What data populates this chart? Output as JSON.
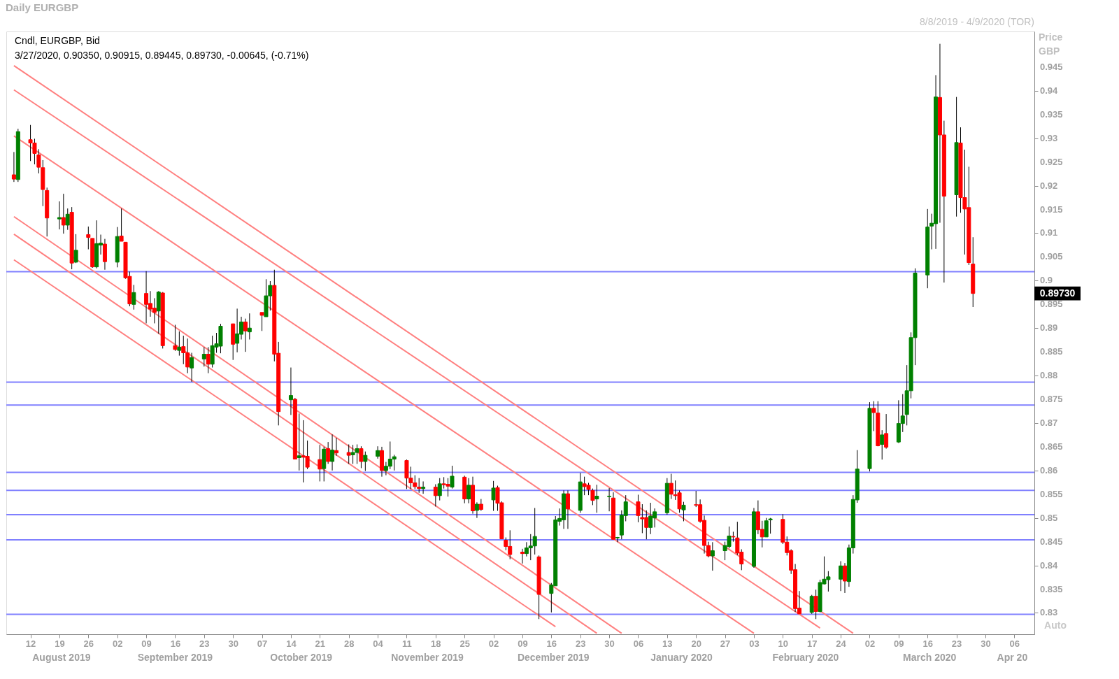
{
  "chart_data": {
    "type": "candlestick",
    "title": "Daily EURGBP",
    "subtitle": "8/8/2019 - 4/9/2020 (TOR)",
    "ylabel": "Price GBP",
    "x": [
      "2019-08-08",
      "2019-08-09",
      "2019-08-12",
      "2019-08-13",
      "2019-08-14",
      "2019-08-15",
      "2019-08-16",
      "2019-08-19",
      "2019-08-20",
      "2019-08-21",
      "2019-08-22",
      "2019-08-23",
      "2019-08-26",
      "2019-08-27",
      "2019-08-28",
      "2019-08-29",
      "2019-08-30",
      "2019-09-02",
      "2019-09-03",
      "2019-09-04",
      "2019-09-05",
      "2019-09-06",
      "2019-09-09",
      "2019-09-10",
      "2019-09-11",
      "2019-09-12",
      "2019-09-13",
      "2019-09-16",
      "2019-09-17",
      "2019-09-18",
      "2019-09-19",
      "2019-09-20",
      "2019-09-23",
      "2019-09-24",
      "2019-09-25",
      "2019-09-26",
      "2019-09-27",
      "2019-09-30",
      "2019-10-01",
      "2019-10-02",
      "2019-10-03",
      "2019-10-04",
      "2019-10-07",
      "2019-10-08",
      "2019-10-09",
      "2019-10-10",
      "2019-10-11",
      "2019-10-14",
      "2019-10-15",
      "2019-10-16",
      "2019-10-17",
      "2019-10-18",
      "2019-10-21",
      "2019-10-22",
      "2019-10-23",
      "2019-10-24",
      "2019-10-25",
      "2019-10-28",
      "2019-10-29",
      "2019-10-30",
      "2019-10-31",
      "2019-11-01",
      "2019-11-04",
      "2019-11-05",
      "2019-11-06",
      "2019-11-07",
      "2019-11-08",
      "2019-11-11",
      "2019-11-12",
      "2019-11-13",
      "2019-11-14",
      "2019-11-15",
      "2019-11-18",
      "2019-11-19",
      "2019-11-20",
      "2019-11-21",
      "2019-11-22",
      "2019-11-25",
      "2019-11-26",
      "2019-11-27",
      "2019-11-28",
      "2019-11-29",
      "2019-12-02",
      "2019-12-03",
      "2019-12-04",
      "2019-12-05",
      "2019-12-06",
      "2019-12-09",
      "2019-12-10",
      "2019-12-11",
      "2019-12-12",
      "2019-12-13",
      "2019-12-16",
      "2019-12-17",
      "2019-12-18",
      "2019-12-19",
      "2019-12-20",
      "2019-12-23",
      "2019-12-24",
      "2019-12-25",
      "2019-12-26",
      "2019-12-27",
      "2019-12-30",
      "2019-12-31",
      "2020-01-01",
      "2020-01-02",
      "2020-01-03",
      "2020-01-06",
      "2020-01-07",
      "2020-01-08",
      "2020-01-09",
      "2020-01-10",
      "2020-01-13",
      "2020-01-14",
      "2020-01-15",
      "2020-01-16",
      "2020-01-17",
      "2020-01-20",
      "2020-01-21",
      "2020-01-22",
      "2020-01-23",
      "2020-01-24",
      "2020-01-27",
      "2020-01-28",
      "2020-01-29",
      "2020-01-30",
      "2020-01-31",
      "2020-02-03",
      "2020-02-04",
      "2020-02-05",
      "2020-02-06",
      "2020-02-07",
      "2020-02-10",
      "2020-02-11",
      "2020-02-12",
      "2020-02-13",
      "2020-02-14",
      "2020-02-17",
      "2020-02-18",
      "2020-02-19",
      "2020-02-20",
      "2020-02-21",
      "2020-02-24",
      "2020-02-25",
      "2020-02-26",
      "2020-02-27",
      "2020-02-28",
      "2020-03-02",
      "2020-03-03",
      "2020-03-04",
      "2020-03-05",
      "2020-03-06",
      "2020-03-09",
      "2020-03-10",
      "2020-03-11",
      "2020-03-12",
      "2020-03-13",
      "2020-03-16",
      "2020-03-17",
      "2020-03-18",
      "2020-03-19",
      "2020-03-20",
      "2020-03-23",
      "2020-03-24",
      "2020-03-25",
      "2020-03-26",
      "2020-03-27"
    ],
    "ohlc": [
      [
        0.9223,
        0.9271,
        0.9208,
        0.9214
      ],
      [
        0.9213,
        0.932,
        0.9208,
        0.9314
      ],
      [
        0.9297,
        0.9328,
        0.9252,
        0.929
      ],
      [
        0.929,
        0.9299,
        0.9245,
        0.9268
      ],
      [
        0.9265,
        0.9277,
        0.9226,
        0.9239
      ],
      [
        0.9238,
        0.9254,
        0.9157,
        0.9192
      ],
      [
        0.919,
        0.9196,
        0.9093,
        0.9132
      ],
      [
        0.913,
        0.9167,
        0.9108,
        0.9133
      ],
      [
        0.9133,
        0.9183,
        0.9099,
        0.9117
      ],
      [
        0.9117,
        0.9152,
        0.9107,
        0.914
      ],
      [
        0.9144,
        0.9155,
        0.9024,
        0.9037
      ],
      [
        0.9039,
        0.9098,
        0.9037,
        0.9064
      ],
      [
        0.9097,
        0.9114,
        0.9066,
        0.9091
      ],
      [
        0.9089,
        0.9089,
        0.9027,
        0.9029
      ],
      [
        0.9029,
        0.9127,
        0.9026,
        0.9078
      ],
      [
        0.9075,
        0.9097,
        0.9055,
        0.9079
      ],
      [
        0.9077,
        0.9088,
        0.9023,
        0.904
      ],
      [
        0.9039,
        0.9113,
        0.9028,
        0.9093
      ],
      [
        0.9094,
        0.9152,
        0.9083,
        0.9083
      ],
      [
        0.9081,
        0.9081,
        0.9004,
        0.9006
      ],
      [
        0.9009,
        0.9019,
        0.8946,
        0.8951
      ],
      [
        0.895,
        0.8991,
        0.8939,
        0.8975
      ],
      [
        0.8973,
        0.902,
        0.891,
        0.895
      ],
      [
        0.8952,
        0.8978,
        0.8924,
        0.894
      ],
      [
        0.8942,
        0.8963,
        0.891,
        0.8933
      ],
      [
        0.8936,
        0.8978,
        0.8888,
        0.8976
      ],
      [
        0.8974,
        0.8976,
        0.8857,
        0.8863
      ],
      [
        0.8863,
        0.8907,
        0.8852,
        0.8855
      ],
      [
        0.8853,
        0.8893,
        0.8842,
        0.886
      ],
      [
        0.8861,
        0.8884,
        0.8824,
        0.8848
      ],
      [
        0.8848,
        0.8878,
        0.8805,
        0.8818
      ],
      [
        0.8816,
        0.8848,
        0.8787,
        0.8838
      ],
      [
        0.8835,
        0.886,
        0.8819,
        0.8845
      ],
      [
        0.8845,
        0.886,
        0.8805,
        0.8824
      ],
      [
        0.8824,
        0.8884,
        0.8817,
        0.8863
      ],
      [
        0.886,
        0.889,
        0.8848,
        0.8867
      ],
      [
        0.8862,
        0.8909,
        0.8847,
        0.8904
      ],
      [
        0.8909,
        0.8909,
        0.8833,
        0.8866
      ],
      [
        0.8868,
        0.8941,
        0.8849,
        0.8888
      ],
      [
        0.8887,
        0.8924,
        0.8876,
        0.8913
      ],
      [
        0.8913,
        0.892,
        0.885,
        0.8894
      ],
      [
        0.8892,
        0.8931,
        0.8876,
        0.89
      ],
      [
        0.8933,
        0.8933,
        0.8894,
        0.8927
      ],
      [
        0.8924,
        0.9003,
        0.8924,
        0.8968
      ],
      [
        0.8968,
        0.8999,
        0.8937,
        0.899
      ],
      [
        0.899,
        0.9023,
        0.883,
        0.8845
      ],
      [
        0.8847,
        0.8871,
        0.8695,
        0.8724
      ],
      [
        0.8749,
        0.8817,
        0.8717,
        0.8758
      ],
      [
        0.875,
        0.8753,
        0.8624,
        0.8624
      ],
      [
        0.8627,
        0.872,
        0.86,
        0.8631
      ],
      [
        0.8631,
        0.8706,
        0.8575,
        0.8628
      ],
      [
        0.863,
        0.8663,
        0.8603,
        0.8607
      ],
      [
        0.8623,
        0.8654,
        0.8577,
        0.8603
      ],
      [
        0.8604,
        0.865,
        0.8577,
        0.8645
      ],
      [
        0.8646,
        0.866,
        0.8614,
        0.8619
      ],
      [
        0.8619,
        0.8676,
        0.86,
        0.8643
      ],
      [
        0.8642,
        0.8669,
        0.8631,
        0.8637
      ],
      [
        0.8638,
        0.8655,
        0.8614,
        0.8632
      ],
      [
        0.8633,
        0.8654,
        0.8614,
        0.8638
      ],
      [
        0.8638,
        0.8655,
        0.8614,
        0.8646
      ],
      [
        0.8646,
        0.8651,
        0.8605,
        0.8619
      ],
      [
        0.8619,
        0.864,
        0.8599,
        0.8632
      ],
      [
        0.863,
        0.8651,
        0.8625,
        0.8642
      ],
      [
        0.8642,
        0.865,
        0.8587,
        0.86
      ],
      [
        0.86,
        0.8618,
        0.859,
        0.8609
      ],
      [
        0.8609,
        0.8661,
        0.8603,
        0.8624
      ],
      [
        0.8624,
        0.8633,
        0.86,
        0.8629
      ],
      [
        0.8621,
        0.8623,
        0.8561,
        0.8584
      ],
      [
        0.8584,
        0.8608,
        0.8561,
        0.8574
      ],
      [
        0.8574,
        0.859,
        0.8561,
        0.8566
      ],
      [
        0.8565,
        0.8584,
        0.8553,
        0.8562
      ],
      [
        0.8562,
        0.8577,
        0.8551,
        0.8565
      ],
      [
        0.8565,
        0.8571,
        0.8524,
        0.8547
      ],
      [
        0.8547,
        0.8584,
        0.8537,
        0.8572
      ],
      [
        0.8572,
        0.8586,
        0.8562,
        0.857
      ],
      [
        0.8571,
        0.8584,
        0.8545,
        0.8567
      ],
      [
        0.8565,
        0.861,
        0.8562,
        0.8588
      ],
      [
        0.8586,
        0.8589,
        0.8531,
        0.854
      ],
      [
        0.854,
        0.8584,
        0.8531,
        0.8569
      ],
      [
        0.8569,
        0.8587,
        0.8509,
        0.8515
      ],
      [
        0.8516,
        0.8533,
        0.85,
        0.8529
      ],
      [
        0.8529,
        0.854,
        0.8515,
        0.8518
      ],
      [
        0.8538,
        0.8578,
        0.8515,
        0.8563
      ],
      [
        0.8564,
        0.8568,
        0.8515,
        0.8531
      ],
      [
        0.8532,
        0.8535,
        0.8456,
        0.8456
      ],
      [
        0.8453,
        0.8459,
        0.8432,
        0.844
      ],
      [
        0.844,
        0.8474,
        0.8413,
        0.8423
      ],
      [
        0.8428,
        0.8435,
        0.8404,
        0.8425
      ],
      [
        0.8425,
        0.8449,
        0.8419,
        0.8437
      ],
      [
        0.8437,
        0.8466,
        0.8411,
        0.8441
      ],
      [
        0.8441,
        0.8521,
        0.8423,
        0.8461
      ],
      [
        0.8418,
        0.8421,
        0.8287,
        0.8339
      ],
      [
        0.8341,
        0.8363,
        0.8301,
        0.8359
      ],
      [
        0.8357,
        0.8504,
        0.8357,
        0.8496
      ],
      [
        0.8493,
        0.852,
        0.8484,
        0.8499
      ],
      [
        0.8496,
        0.8558,
        0.8477,
        0.8551
      ],
      [
        0.8551,
        0.8558,
        0.8477,
        0.8519
      ],
      [
        0.8516,
        0.8595,
        0.8511,
        0.8576
      ],
      [
        0.8572,
        0.8587,
        0.8548,
        0.8566
      ],
      [
        0.8569,
        0.8574,
        0.8548,
        0.856
      ],
      [
        0.8558,
        0.8562,
        0.8527,
        0.8537
      ],
      [
        0.854,
        0.857,
        0.8511,
        0.8546
      ],
      [
        0.8545,
        0.8563,
        0.8514,
        0.8546
      ],
      [
        0.8542,
        0.8554,
        0.8455,
        0.8455
      ],
      [
        0.8458,
        0.846,
        0.8449,
        0.8459
      ],
      [
        0.8464,
        0.8516,
        0.8455,
        0.8506
      ],
      [
        0.8505,
        0.8548,
        0.8493,
        0.8534
      ],
      [
        0.8534,
        0.8549,
        0.8491,
        0.8505
      ],
      [
        0.8501,
        0.8529,
        0.8468,
        0.8498
      ],
      [
        0.8501,
        0.8516,
        0.8455,
        0.848
      ],
      [
        0.848,
        0.8532,
        0.8466,
        0.8504
      ],
      [
        0.85,
        0.852,
        0.848,
        0.8513
      ],
      [
        0.8511,
        0.8584,
        0.8507,
        0.8573
      ],
      [
        0.8573,
        0.8593,
        0.854,
        0.855
      ],
      [
        0.8549,
        0.8579,
        0.8538,
        0.8547
      ],
      [
        0.8553,
        0.8558,
        0.8511,
        0.8519
      ],
      [
        0.8517,
        0.8534,
        0.8493,
        0.8527
      ],
      [
        0.8528,
        0.8557,
        0.8523,
        0.8527
      ],
      [
        0.8528,
        0.8539,
        0.849,
        0.8493
      ],
      [
        0.8495,
        0.8505,
        0.8425,
        0.8442
      ],
      [
        0.8442,
        0.845,
        0.8417,
        0.842
      ],
      [
        0.842,
        0.8449,
        0.8389,
        0.8431
      ],
      [
        0.8431,
        0.845,
        0.8411,
        0.8442
      ],
      [
        0.844,
        0.8482,
        0.8436,
        0.8462
      ],
      [
        0.8461,
        0.8471,
        0.845,
        0.846
      ],
      [
        0.8458,
        0.8492,
        0.8422,
        0.8426
      ],
      [
        0.8428,
        0.8434,
        0.839,
        0.8403
      ],
      [
        0.8398,
        0.8521,
        0.8395,
        0.8513
      ],
      [
        0.8513,
        0.8537,
        0.8466,
        0.8475
      ],
      [
        0.8476,
        0.8494,
        0.8438,
        0.846
      ],
      [
        0.846,
        0.85,
        0.846,
        0.8494
      ],
      [
        0.8496,
        0.85,
        0.8467,
        0.8498
      ],
      [
        0.8497,
        0.8508,
        0.8445,
        0.8449
      ],
      [
        0.8449,
        0.8461,
        0.8421,
        0.8427
      ],
      [
        0.8431,
        0.8434,
        0.8382,
        0.839
      ],
      [
        0.8391,
        0.8403,
        0.8302,
        0.8309
      ],
      [
        0.831,
        0.8346,
        0.8298,
        0.8298
      ],
      [
        0.8301,
        0.8338,
        0.8298,
        0.8335
      ],
      [
        0.8335,
        0.8349,
        0.8287,
        0.8303
      ],
      [
        0.8303,
        0.837,
        0.8301,
        0.8364
      ],
      [
        0.8361,
        0.8419,
        0.836,
        0.8371
      ],
      [
        0.837,
        0.8388,
        0.8345,
        0.8376
      ],
      [
        0.8371,
        0.8409,
        0.8346,
        0.8399
      ],
      [
        0.8399,
        0.8405,
        0.8342,
        0.8367
      ],
      [
        0.8366,
        0.8444,
        0.8355,
        0.8437
      ],
      [
        0.8437,
        0.8548,
        0.8425,
        0.8539
      ],
      [
        0.8538,
        0.8643,
        0.8532,
        0.8603
      ],
      [
        0.8604,
        0.8744,
        0.8598,
        0.8731
      ],
      [
        0.8731,
        0.8746,
        0.8683,
        0.8722
      ],
      [
        0.8721,
        0.8746,
        0.8651,
        0.8652
      ],
      [
        0.8655,
        0.8685,
        0.8623,
        0.8675
      ],
      [
        0.8678,
        0.8719,
        0.8646,
        0.8649
      ],
      [
        0.866,
        0.8748,
        0.8658,
        0.8699
      ],
      [
        0.8699,
        0.8761,
        0.8681,
        0.8715
      ],
      [
        0.8718,
        0.8822,
        0.8695,
        0.8768
      ],
      [
        0.8768,
        0.8891,
        0.8752,
        0.888
      ],
      [
        0.888,
        0.9026,
        0.8822,
        0.9016
      ],
      [
        0.9012,
        0.9151,
        0.8984,
        0.9113
      ],
      [
        0.9115,
        0.9141,
        0.9066,
        0.9121
      ],
      [
        0.912,
        0.9433,
        0.9067,
        0.9387
      ],
      [
        0.9386,
        0.9499,
        0.9122,
        0.9307
      ],
      [
        0.9307,
        0.9337,
        0.8996,
        0.9178
      ],
      [
        0.9181,
        0.9387,
        0.9135,
        0.9291
      ],
      [
        0.929,
        0.9323,
        0.9143,
        0.9175
      ],
      [
        0.9175,
        0.9276,
        0.9055,
        0.9151
      ],
      [
        0.9154,
        0.924,
        0.9033,
        0.9038
      ],
      [
        0.9035,
        0.90915,
        0.89445,
        0.8973
      ]
    ],
    "colors": [
      "#ff0000",
      "#008000",
      "#ff0000",
      "#ff0000",
      "#ff0000",
      "#ff0000",
      "#ff0000",
      "#008000",
      "#ff0000",
      "#008000",
      "#ff0000",
      "#008000",
      "#ff0000",
      "#ff0000",
      "#008000",
      "#008000",
      "#ff0000",
      "#008000",
      "#ff0000",
      "#ff0000",
      "#ff0000",
      "#008000",
      "#ff0000",
      "#ff0000",
      "#ff0000",
      "#008000",
      "#ff0000",
      "#ff0000",
      "#008000",
      "#ff0000",
      "#ff0000",
      "#008000",
      "#008000",
      "#ff0000",
      "#008000",
      "#008000",
      "#008000",
      "#ff0000",
      "#008000",
      "#008000",
      "#ff0000",
      "#008000",
      "#ff0000",
      "#008000",
      "#008000",
      "#ff0000",
      "#ff0000",
      "#008000",
      "#ff0000",
      "#008000",
      "#ff0000",
      "#ff0000",
      "#ff0000",
      "#008000",
      "#ff0000",
      "#008000",
      "#ff0000",
      "#ff0000",
      "#008000",
      "#008000",
      "#ff0000",
      "#008000",
      "#008000",
      "#ff0000",
      "#008000",
      "#008000",
      "#008000",
      "#ff0000",
      "#ff0000",
      "#ff0000",
      "#ff0000",
      "#008000",
      "#ff0000",
      "#008000",
      "#ff0000",
      "#ff0000",
      "#008000",
      "#ff0000",
      "#008000",
      "#ff0000",
      "#008000",
      "#ff0000",
      "#008000",
      "#ff0000",
      "#ff0000",
      "#ff0000",
      "#ff0000",
      "#ff0000",
      "#008000",
      "#008000",
      "#008000",
      "#ff0000",
      "#008000",
      "#008000",
      "#008000",
      "#008000",
      "#ff0000",
      "#008000",
      "#ff0000",
      "#ff0000",
      "#ff0000",
      "#008000",
      "#008000",
      "#ff0000",
      "#008000",
      "#008000",
      "#008000",
      "#ff0000",
      "#ff0000",
      "#ff0000",
      "#008000",
      "#008000",
      "#008000",
      "#ff0000",
      "#ff0000",
      "#ff0000",
      "#008000",
      "#ff0000",
      "#ff0000",
      "#ff0000",
      "#ff0000",
      "#008000",
      "#008000",
      "#008000",
      "#ff0000",
      "#ff0000",
      "#ff0000",
      "#008000",
      "#ff0000",
      "#ff0000",
      "#008000",
      "#008000",
      "#ff0000",
      "#ff0000",
      "#ff0000",
      "#ff0000",
      "#ff0000",
      "#008000",
      "#ff0000",
      "#008000",
      "#008000",
      "#008000",
      "#008000",
      "#ff0000",
      "#008000",
      "#008000",
      "#008000",
      "#008000",
      "#ff0000",
      "#ff0000",
      "#008000",
      "#ff0000",
      "#008000",
      "#008000",
      "#008000",
      "#008000",
      "#008000",
      "#008000",
      "#008000",
      "#008000",
      "#ff0000",
      "#ff0000",
      "#008000",
      "#ff0000",
      "#ff0000",
      "#ff0000",
      "#ff0000"
    ],
    "xlim": [
      "2019-08-07",
      "2020-04-10"
    ],
    "xticks": [
      {
        "value": "2019-08-12",
        "label": "12"
      },
      {
        "value": "2019-08-19",
        "label": "19"
      },
      {
        "value": "2019-08-26",
        "label": "26"
      },
      {
        "value": "2019-09-02",
        "label": "02"
      },
      {
        "value": "2019-09-09",
        "label": "09"
      },
      {
        "value": "2019-09-16",
        "label": "16"
      },
      {
        "value": "2019-09-23",
        "label": "23"
      },
      {
        "value": "2019-09-30",
        "label": "30"
      },
      {
        "value": "2019-10-07",
        "label": "07"
      },
      {
        "value": "2019-10-14",
        "label": "14"
      },
      {
        "value": "2019-10-21",
        "label": "21"
      },
      {
        "value": "2019-10-28",
        "label": "28"
      },
      {
        "value": "2019-11-04",
        "label": "04"
      },
      {
        "value": "2019-11-11",
        "label": "11"
      },
      {
        "value": "2019-11-18",
        "label": "18"
      },
      {
        "value": "2019-11-25",
        "label": "25"
      },
      {
        "value": "2019-12-02",
        "label": "02"
      },
      {
        "value": "2019-12-09",
        "label": "09"
      },
      {
        "value": "2019-12-16",
        "label": "16"
      },
      {
        "value": "2019-12-23",
        "label": "23"
      },
      {
        "value": "2019-12-30",
        "label": "30"
      },
      {
        "value": "2020-01-06",
        "label": "06"
      },
      {
        "value": "2020-01-13",
        "label": "13"
      },
      {
        "value": "2020-01-20",
        "label": "20"
      },
      {
        "value": "2020-01-27",
        "label": "27"
      },
      {
        "value": "2020-02-03",
        "label": "03"
      },
      {
        "value": "2020-02-10",
        "label": "10"
      },
      {
        "value": "2020-02-17",
        "label": "17"
      },
      {
        "value": "2020-02-24",
        "label": "24"
      },
      {
        "value": "2020-03-02",
        "label": "02"
      },
      {
        "value": "2020-03-09",
        "label": "09"
      },
      {
        "value": "2020-03-16",
        "label": "16"
      },
      {
        "value": "2020-03-23",
        "label": "23"
      },
      {
        "value": "2020-03-30",
        "label": "30"
      },
      {
        "value": "2020-04-06",
        "label": "06"
      }
    ],
    "ylim": [
      0.8255,
      0.9525
    ],
    "yticks": [
      0.83,
      0.835,
      0.84,
      0.845,
      0.85,
      0.855,
      0.86,
      0.865,
      0.87,
      0.875,
      0.88,
      0.885,
      0.89,
      0.895,
      0.9,
      0.905,
      0.91,
      0.915,
      0.92,
      0.925,
      0.93,
      0.935,
      0.94,
      0.945
    ],
    "ref_lines": [
      {
        "axis": "y",
        "value": 0.9019,
        "color": "#8080ff"
      },
      {
        "axis": "y",
        "value": 0.8786,
        "color": "#8080ff"
      },
      {
        "axis": "y",
        "value": 0.8738,
        "color": "#8080ff"
      },
      {
        "axis": "y",
        "value": 0.8596,
        "color": "#8080ff"
      },
      {
        "axis": "y",
        "value": 0.8558,
        "color": "#8080ff"
      },
      {
        "axis": "y",
        "value": 0.8507,
        "color": "#8080ff"
      },
      {
        "axis": "y",
        "value": 0.8454,
        "color": "#8080ff"
      },
      {
        "axis": "y",
        "value": 0.8297,
        "color": "#8080ff"
      }
    ],
    "series": [
      {
        "type": "line",
        "color": "#ff8080",
        "x": [
          "2019-08-08",
          "2020-02-27"
        ],
        "values": [
          0.9453,
          0.8257
        ]
      },
      {
        "type": "line",
        "color": "#ff8080",
        "x": [
          "2019-08-08",
          "2020-02-19"
        ],
        "values": [
          0.9402,
          0.8268
        ]
      },
      {
        "type": "line",
        "color": "#ff8080",
        "x": [
          "2019-08-08",
          "2020-02-03"
        ],
        "values": [
          0.9305,
          0.8257
        ]
      },
      {
        "type": "line",
        "color": "#ff8080",
        "x": [
          "2019-08-08",
          "2020-01-02"
        ],
        "values": [
          0.9135,
          0.8257
        ]
      },
      {
        "type": "line",
        "color": "#ff8080",
        "x": [
          "2019-08-08",
          "2019-12-27"
        ],
        "values": [
          0.9098,
          0.8257
        ]
      },
      {
        "type": "line",
        "color": "#ff8080",
        "x": [
          "2019-08-08",
          "2019-12-17"
        ],
        "values": [
          0.9044,
          0.8271
        ]
      }
    ],
    "annotations": [
      "Cndl, EURGBP, Bid",
      "3/27/2020, 0.90350, 0.90915, 0.89445, 0.89730, -0.00645, (-0.71%)",
      "0.89730",
      "August 2019",
      "September 2019",
      "October 2019",
      "November 2019",
      "December 2019",
      "January 2020",
      "February 2020",
      "March 2020",
      "Apr 20",
      "Auto"
    ]
  }
}
